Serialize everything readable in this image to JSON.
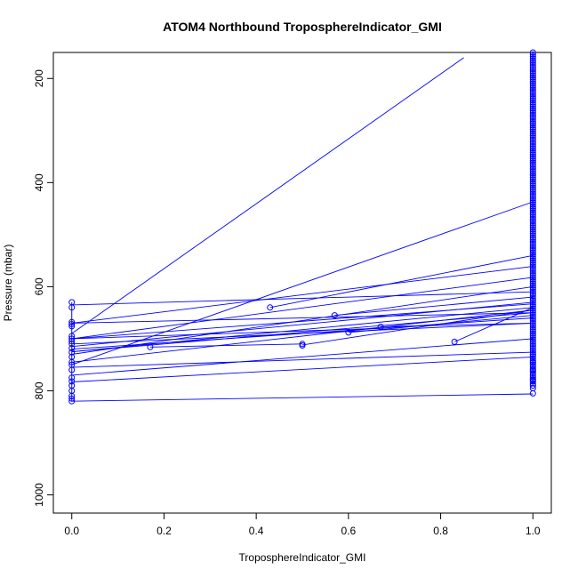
{
  "chart_data": {
    "type": "line",
    "title": "ATOM4 Northbound TroposphereIndicator_GMI",
    "xlabel": "TroposphereIndicator_GMI",
    "ylabel": "Pressure (mbar)",
    "xlim": [
      -0.04,
      1.04
    ],
    "ylim": [
      1035,
      150
    ],
    "y_reversed": true,
    "grid": false,
    "legend": "none",
    "x_ticks": [
      "0.0",
      "0.2",
      "0.4",
      "0.6",
      "0.8",
      "1.0"
    ],
    "x_tick_values": [
      0,
      0.2,
      0.4,
      0.6,
      0.8,
      1.0
    ],
    "y_ticks": [
      "200",
      "400",
      "600",
      "800",
      "1000"
    ],
    "y_tick_values": [
      200,
      400,
      600,
      800,
      1000
    ],
    "color": "#0000ff",
    "segments": [
      {
        "x": [
          0,
          0.85
        ],
        "y": [
          690,
          160
        ]
      },
      {
        "x": [
          0,
          1
        ],
        "y": [
          750,
          437
        ]
      },
      {
        "x": [
          0,
          1
        ],
        "y": [
          670,
          561
        ]
      },
      {
        "x": [
          0,
          1
        ],
        "y": [
          635,
          610
        ]
      },
      {
        "x": [
          0,
          1
        ],
        "y": [
          700,
          582
        ]
      },
      {
        "x": [
          0,
          1
        ],
        "y": [
          730,
          600
        ]
      },
      {
        "x": [
          0,
          1
        ],
        "y": [
          715,
          630
        ]
      },
      {
        "x": [
          0,
          1
        ],
        "y": [
          700,
          633
        ]
      },
      {
        "x": [
          0,
          1
        ],
        "y": [
          725,
          640
        ]
      },
      {
        "x": [
          0,
          1
        ],
        "y": [
          745,
          645
        ]
      },
      {
        "x": [
          0,
          1
        ],
        "y": [
          725,
          650
        ]
      },
      {
        "x": [
          0,
          1
        ],
        "y": [
          720,
          660
        ]
      },
      {
        "x": [
          0,
          1
        ],
        "y": [
          710,
          670
        ]
      },
      {
        "x": [
          0,
          1
        ],
        "y": [
          770,
          700
        ]
      },
      {
        "x": [
          0,
          1
        ],
        "y": [
          755,
          726
        ]
      },
      {
        "x": [
          0,
          1
        ],
        "y": [
          783,
          735
        ]
      },
      {
        "x": [
          0,
          1
        ],
        "y": [
          820,
          806
        ]
      },
      {
        "x": [
          0,
          1
        ],
        "y": [
          670,
          650
        ]
      },
      {
        "x": [
          0.43,
          1
        ],
        "y": [
          640,
          540
        ]
      },
      {
        "x": [
          0.57,
          1
        ],
        "y": [
          655,
          620
        ]
      },
      {
        "x": [
          0.5,
          1
        ],
        "y": [
          712,
          645
        ]
      },
      {
        "x": [
          0.6,
          1
        ],
        "y": [
          688,
          655
        ]
      },
      {
        "x": [
          0.67,
          1
        ],
        "y": [
          677,
          670
        ]
      },
      {
        "x": [
          0.83,
          1
        ],
        "y": [
          706,
          640
        ]
      },
      {
        "x": [
          0.17,
          0.5
        ],
        "y": [
          716,
          710
        ]
      },
      {
        "x": [
          0,
          0.67
        ],
        "y": [
          700,
          680
        ]
      }
    ],
    "points": {
      "x0": [
        630,
        640,
        668,
        672,
        676,
        695,
        700,
        705,
        710,
        718,
        726,
        735,
        745,
        750,
        760,
        775,
        782,
        790,
        800,
        810,
        815,
        820
      ],
      "x1_range": [
        150,
        790
      ],
      "x1_extra": [
        805,
        795,
        780,
        760,
        745,
        730
      ],
      "mid": [
        {
          "x": 0.17,
          "y": 716
        },
        {
          "x": 0.43,
          "y": 640
        },
        {
          "x": 0.5,
          "y": 710
        },
        {
          "x": 0.5,
          "y": 713
        },
        {
          "x": 0.57,
          "y": 655
        },
        {
          "x": 0.6,
          "y": 688
        },
        {
          "x": 0.67,
          "y": 677
        },
        {
          "x": 0.83,
          "y": 706
        }
      ]
    }
  }
}
